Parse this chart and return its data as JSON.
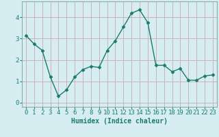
{
  "x": [
    0,
    1,
    2,
    3,
    4,
    5,
    6,
    7,
    8,
    9,
    10,
    11,
    12,
    13,
    14,
    15,
    16,
    17,
    18,
    19,
    20,
    21,
    22,
    23
  ],
  "y": [
    3.15,
    2.75,
    2.45,
    1.2,
    0.3,
    0.6,
    1.2,
    1.55,
    1.7,
    1.65,
    2.45,
    2.9,
    3.55,
    4.2,
    4.35,
    3.75,
    1.75,
    1.75,
    1.45,
    1.6,
    1.05,
    1.05,
    1.25,
    1.3
  ],
  "line_color": "#1a7a6e",
  "marker": "D",
  "marker_size": 2.5,
  "line_width": 1.0,
  "bg_color": "#d6eef2",
  "grid_color": "#b0cdd4",
  "tick_color": "#1a7a6e",
  "label_color": "#1a7a6e",
  "xlabel": "Humidex (Indice chaleur)",
  "xlim": [
    -0.5,
    23.5
  ],
  "ylim": [
    -0.2,
    4.75
  ],
  "yticks": [
    0,
    1,
    2,
    3,
    4
  ],
  "xticks": [
    0,
    1,
    2,
    3,
    4,
    5,
    6,
    7,
    8,
    9,
    10,
    11,
    12,
    13,
    14,
    15,
    16,
    17,
    18,
    19,
    20,
    21,
    22,
    23
  ],
  "xlabel_fontsize": 7,
  "tick_fontsize": 6.5
}
